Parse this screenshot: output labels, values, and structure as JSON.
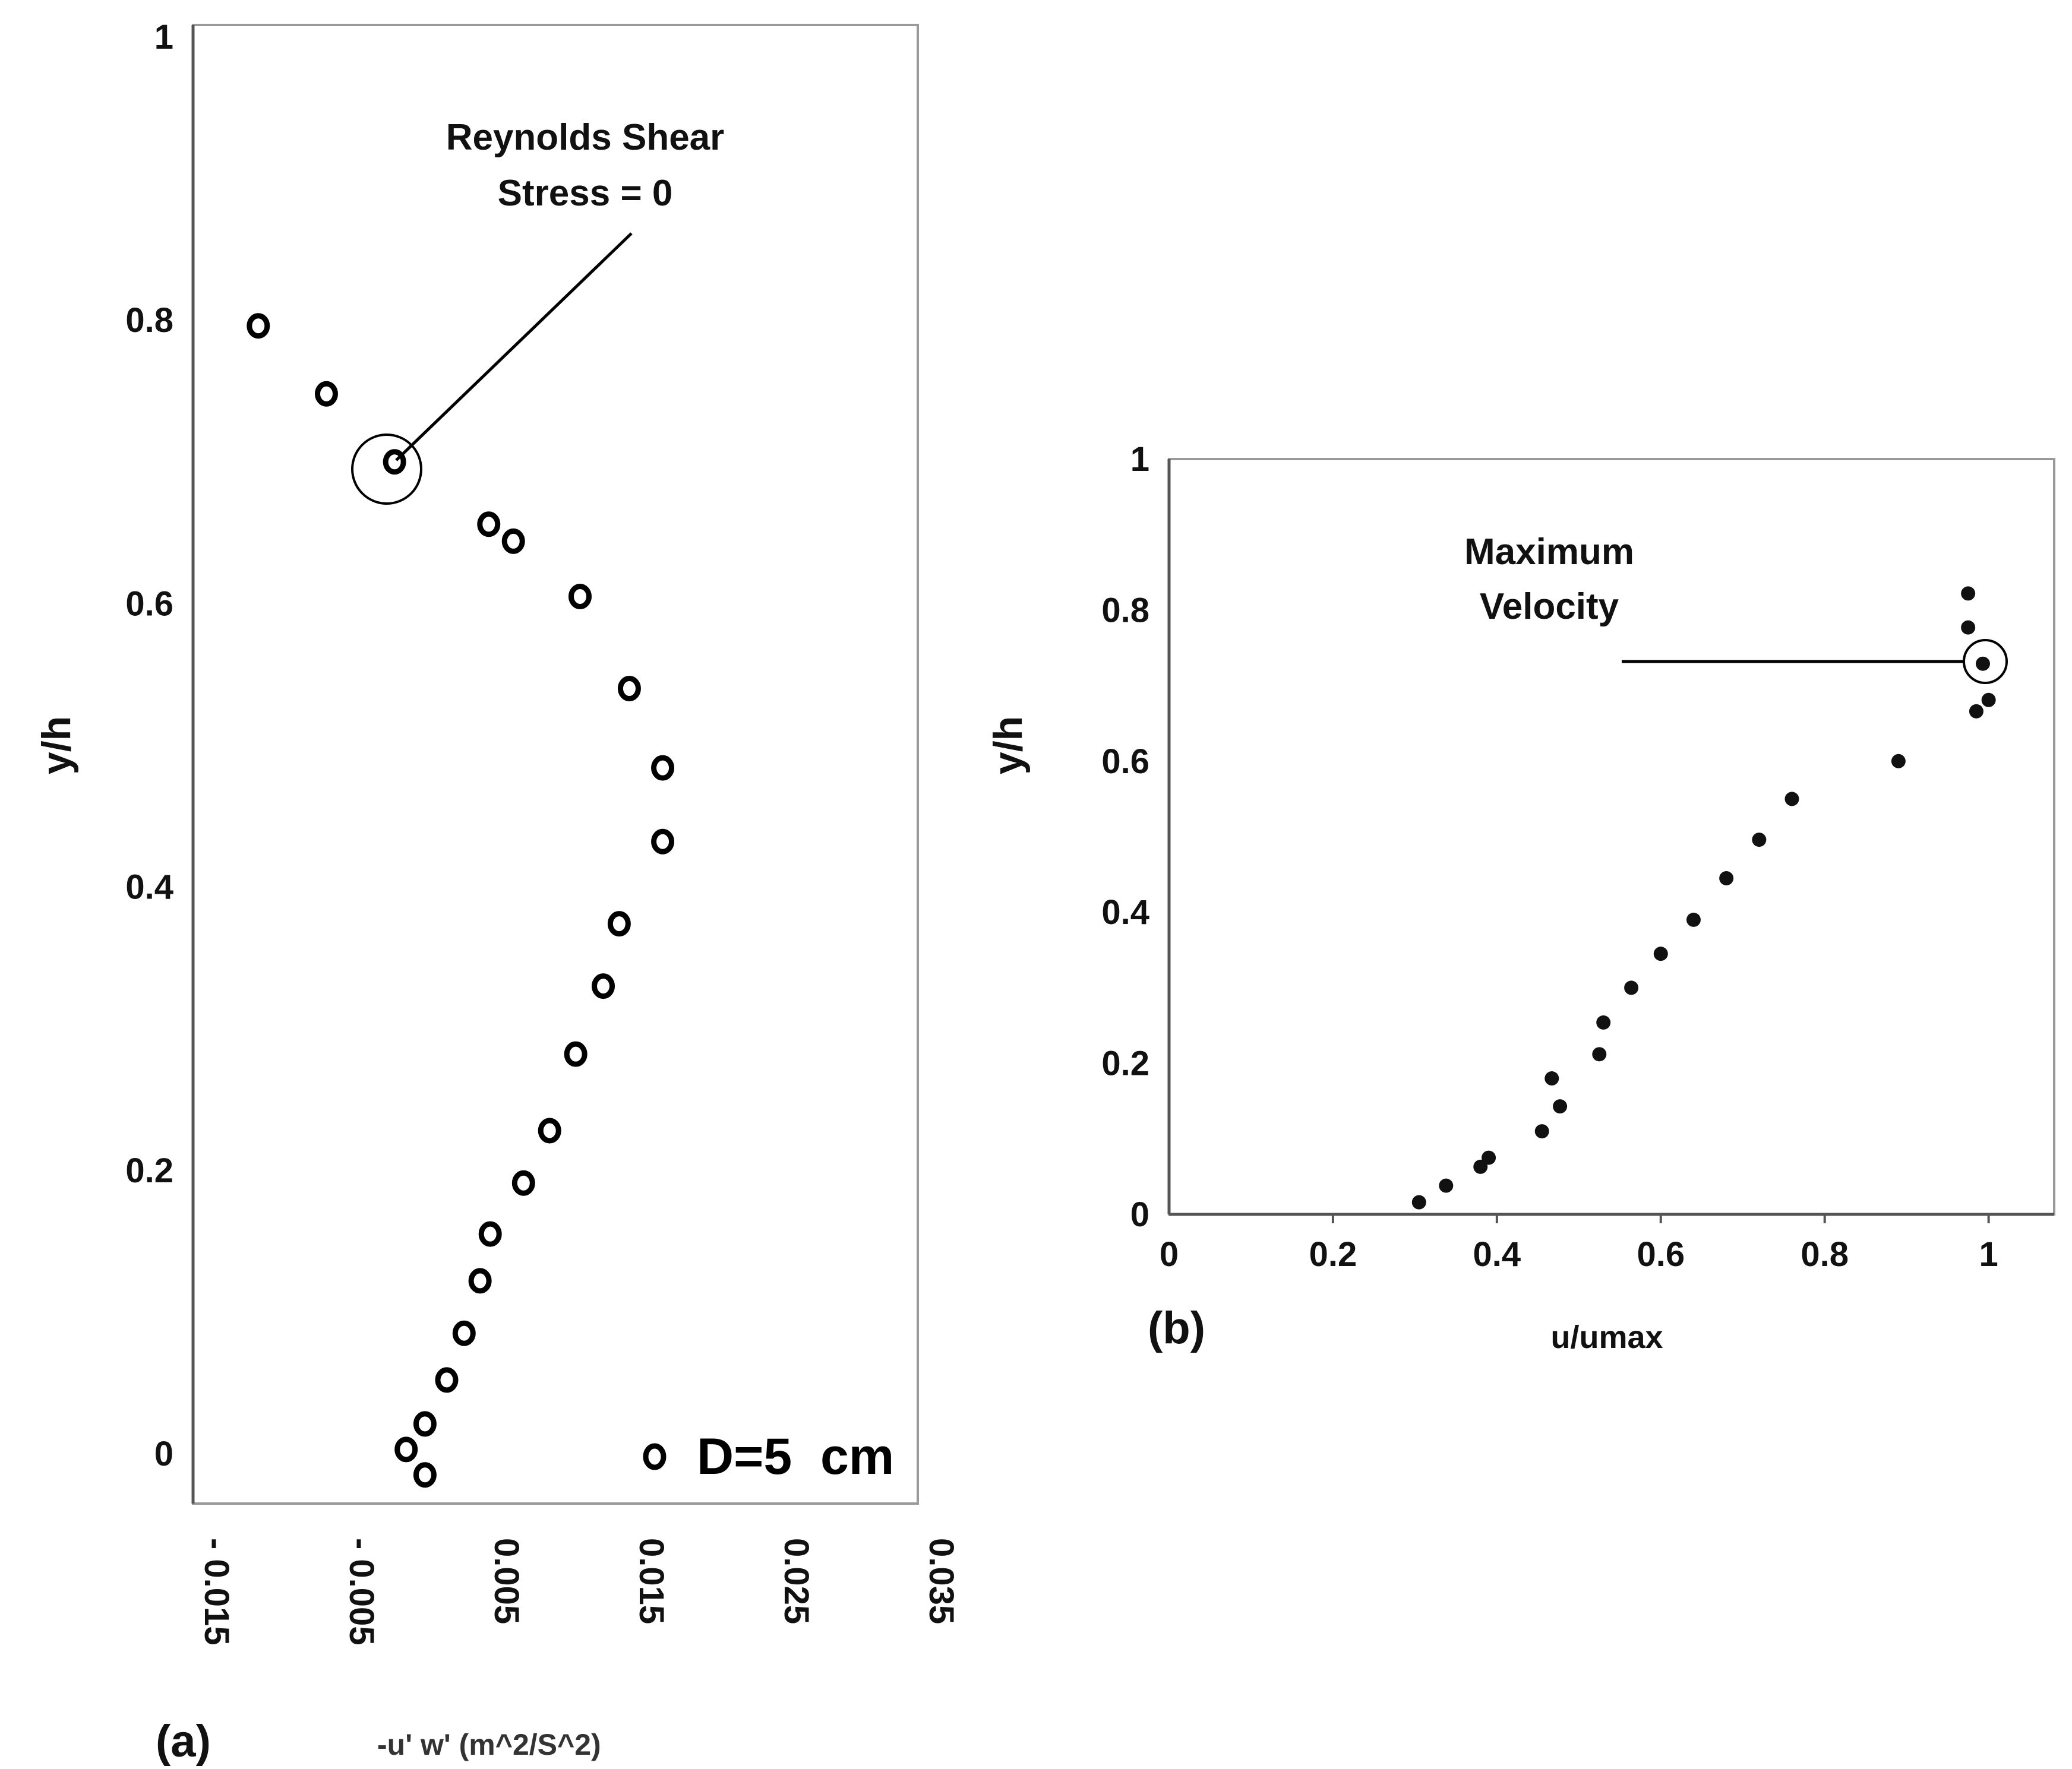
{
  "chart_data": [
    {
      "panel": "(a)",
      "type": "scatter",
      "xlabel": "-u' w' (m^2/S^2)",
      "ylabel": "y/h",
      "xlim": [
        -0.015,
        0.035
      ],
      "ylim": [
        0,
        1
      ],
      "x_ticks": [
        "- 0.015",
        "- 0.005",
        "0.005",
        "0.015",
        "0.025",
        "0.035"
      ],
      "y_ticks": [
        "0",
        "0.2",
        "0.4",
        "0.6",
        "0.8",
        "1"
      ],
      "series": [
        {
          "name": "D=5  cm",
          "marker": "open-circle",
          "points": [
            {
              "x": 0.001,
              "y": -0.015
            },
            {
              "x": -0.0003,
              "y": 0.003
            },
            {
              "x": 0.001,
              "y": 0.021
            },
            {
              "x": 0.0025,
              "y": 0.052
            },
            {
              "x": 0.0037,
              "y": 0.085
            },
            {
              "x": 0.0048,
              "y": 0.122
            },
            {
              "x": 0.0055,
              "y": 0.155
            },
            {
              "x": 0.0078,
              "y": 0.191
            },
            {
              "x": 0.0096,
              "y": 0.228
            },
            {
              "x": 0.0114,
              "y": 0.282
            },
            {
              "x": 0.0133,
              "y": 0.33
            },
            {
              "x": 0.0144,
              "y": 0.374
            },
            {
              "x": 0.0174,
              "y": 0.432
            },
            {
              "x": 0.0174,
              "y": 0.484
            },
            {
              "x": 0.0151,
              "y": 0.54
            },
            {
              "x": 0.0117,
              "y": 0.605
            },
            {
              "x": 0.0071,
              "y": 0.644
            },
            {
              "x": 0.0054,
              "y": 0.656
            },
            {
              "x": -0.0011,
              "y": 0.7
            },
            {
              "x": -0.0058,
              "y": 0.748
            },
            {
              "x": -0.0105,
              "y": 0.796
            }
          ]
        }
      ],
      "annotations": [
        {
          "text_lines": [
            "Reynolds Shear",
            "Stress = 0"
          ],
          "point": {
            "x": -0.0011,
            "y": 0.7
          }
        }
      ],
      "legend": {
        "label": "D=5  cm",
        "position": "bottom-right"
      }
    },
    {
      "panel": "(b)",
      "type": "scatter",
      "xlabel": "u/umax",
      "ylabel": "y/h",
      "xlim": [
        0,
        1.08
      ],
      "ylim": [
        0,
        1
      ],
      "x_ticks": [
        "0",
        "0.2",
        "0.4",
        "0.6",
        "0.8",
        "1"
      ],
      "y_ticks": [
        "0",
        "0.2",
        "0.4",
        "0.6",
        "0.8",
        "1"
      ],
      "series": [
        {
          "name": "u/umax",
          "marker": "filled-circle",
          "points": [
            {
              "x": 0.305,
              "y": 0.016
            },
            {
              "x": 0.338,
              "y": 0.038
            },
            {
              "x": 0.38,
              "y": 0.063
            },
            {
              "x": 0.39,
              "y": 0.075
            },
            {
              "x": 0.455,
              "y": 0.11
            },
            {
              "x": 0.477,
              "y": 0.143
            },
            {
              "x": 0.467,
              "y": 0.18
            },
            {
              "x": 0.525,
              "y": 0.212
            },
            {
              "x": 0.53,
              "y": 0.254
            },
            {
              "x": 0.564,
              "y": 0.3
            },
            {
              "x": 0.6,
              "y": 0.345
            },
            {
              "x": 0.64,
              "y": 0.39
            },
            {
              "x": 0.68,
              "y": 0.445
            },
            {
              "x": 0.72,
              "y": 0.496
            },
            {
              "x": 0.76,
              "y": 0.55
            },
            {
              "x": 0.89,
              "y": 0.6
            },
            {
              "x": 0.985,
              "y": 0.666
            },
            {
              "x": 1.0,
              "y": 0.681
            },
            {
              "x": 0.993,
              "y": 0.729
            },
            {
              "x": 0.975,
              "y": 0.777
            },
            {
              "x": 0.975,
              "y": 0.822
            }
          ]
        }
      ],
      "annotations": [
        {
          "text_lines": [
            "Maximum",
            "Velocity"
          ],
          "point": {
            "x": 0.993,
            "y": 0.729
          }
        }
      ]
    }
  ]
}
